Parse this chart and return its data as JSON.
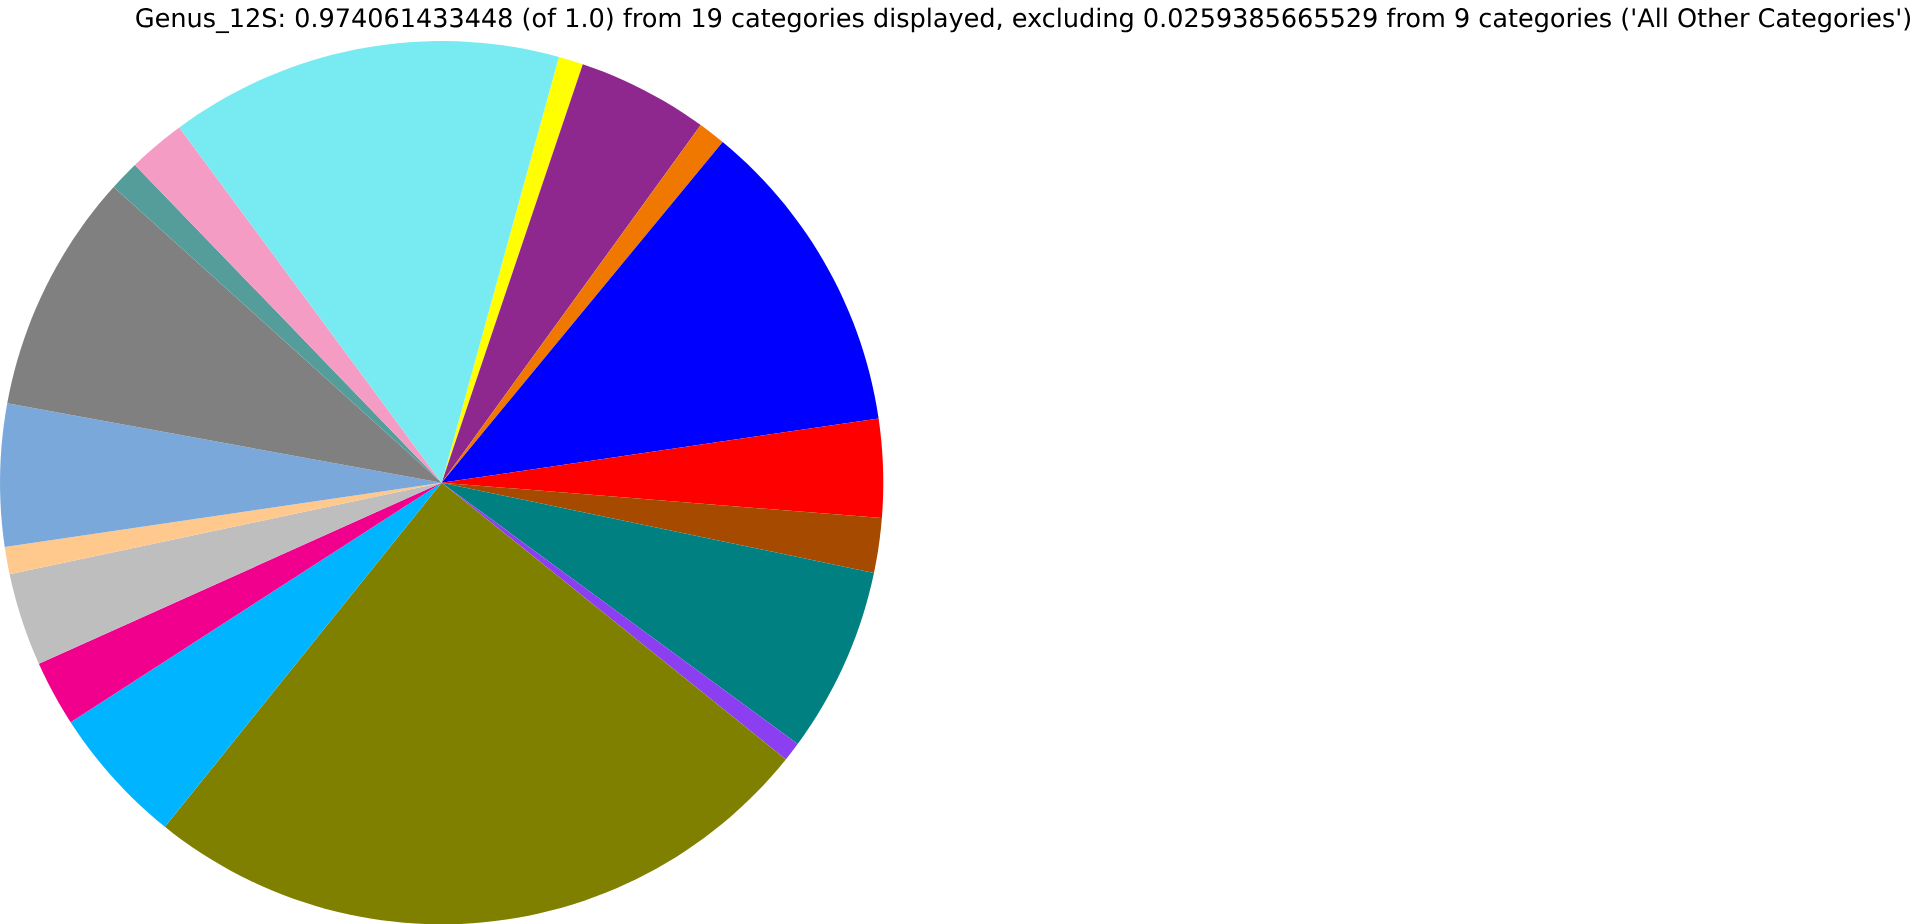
{
  "chart_data": {
    "type": "pie",
    "title": "Genus_12S: 0.974061433448 (of 1.0) from 19 categories displayed, excluding 0.0259385665529 from 9 categories ('All Other Categories')",
    "categories": [
      null,
      null,
      null,
      null,
      null,
      null,
      null,
      null,
      null,
      null,
      null,
      null,
      null,
      null,
      null,
      null,
      null,
      null
    ],
    "values": [
      0.9,
      4.8,
      1.0,
      11.7,
      3.6,
      2.0,
      6.8,
      0.7,
      25.0,
      5.1,
      2.4,
      3.4,
      1.0,
      5.2,
      8.8,
      1.1,
      2.1,
      14.4
    ],
    "colors": [
      "#ffff00",
      "#8e278e",
      "#f07800",
      "#0000ff",
      "#ff0000",
      "#a64a00",
      "#008080",
      "#8c3ff0",
      "#808000",
      "#00b4ff",
      "#f0008c",
      "#bebebe",
      "#ffc88c",
      "#7aa8da",
      "#808080",
      "#559d9b",
      "#f49cc4",
      "#78ebf2"
    ]
  }
}
